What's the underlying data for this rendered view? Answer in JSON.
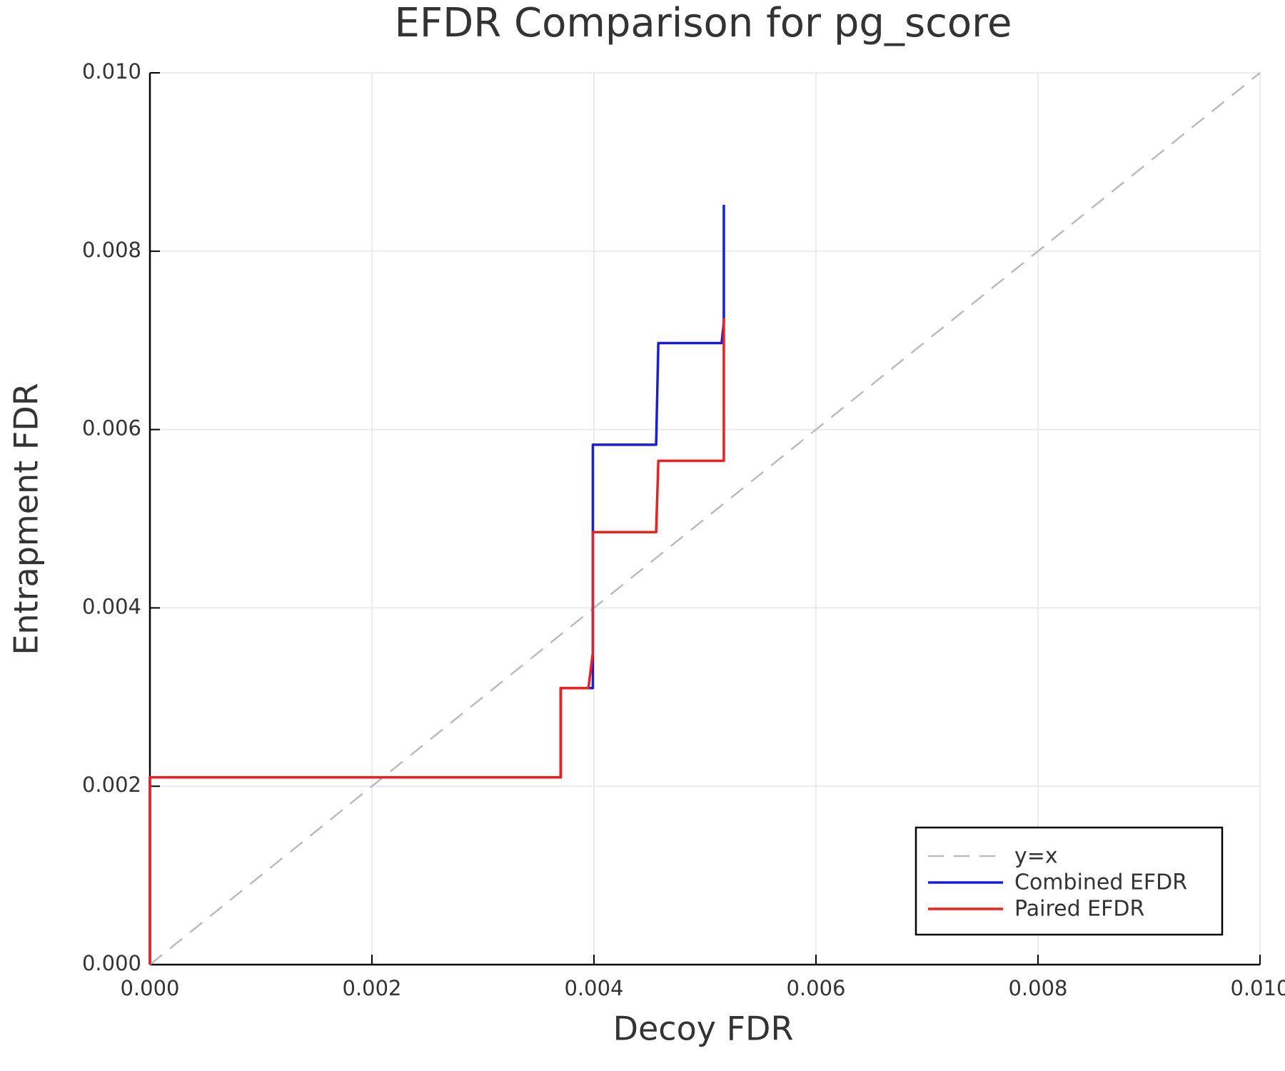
{
  "chart_data": {
    "type": "line",
    "title": "EFDR Comparison for pg_score",
    "x_label": "Decoy FDR",
    "y_label": "Entrapment FDR",
    "xlim": [
      0,
      0.01
    ],
    "ylim": [
      0,
      0.01
    ],
    "xticks": [
      {
        "value": 0,
        "label": "0.000"
      },
      {
        "value": 0.002,
        "label": "0.002"
      },
      {
        "value": 0.004,
        "label": "0.004"
      },
      {
        "value": 0.006,
        "label": "0.006"
      },
      {
        "value": 0.008,
        "label": "0.008"
      },
      {
        "value": 0.01,
        "label": "0.010"
      }
    ],
    "yticks": [
      {
        "value": 0,
        "label": "0.000"
      },
      {
        "value": 0.002,
        "label": "0.002"
      },
      {
        "value": 0.004,
        "label": "0.004"
      },
      {
        "value": 0.006,
        "label": "0.006"
      },
      {
        "value": 0.008,
        "label": "0.008"
      },
      {
        "value": 0.01,
        "label": "0.010"
      }
    ],
    "grid": true,
    "legend": "bottom-right",
    "series": [
      {
        "name": "y=x",
        "color": "#bbbbbb",
        "dashed": true,
        "x": [
          0,
          0.01
        ],
        "values": [
          0,
          0.01
        ]
      },
      {
        "name": "Combined EFDR",
        "color": "#1a1ae6",
        "x": [
          0,
          0,
          0.0037,
          0.0037,
          0.00399,
          0.00399,
          0.00456,
          0.00458,
          0.00515,
          0.00517,
          0.00517
        ],
        "values": [
          0,
          0.0021,
          0.0021,
          0.0031,
          0.0031,
          0.00583,
          0.00583,
          0.00697,
          0.00697,
          0.0072,
          0.00852
        ]
      },
      {
        "name": "Paired EFDR",
        "color": "#f01e1e",
        "x": [
          0,
          0,
          0.0037,
          0.0037,
          0.00395,
          0.00399,
          0.00399,
          0.00456,
          0.00458,
          0.00517,
          0.00517
        ],
        "values": [
          0,
          0.0021,
          0.0021,
          0.0031,
          0.0031,
          0.0035,
          0.00485,
          0.00485,
          0.00565,
          0.00565,
          0.00725
        ]
      }
    ]
  }
}
